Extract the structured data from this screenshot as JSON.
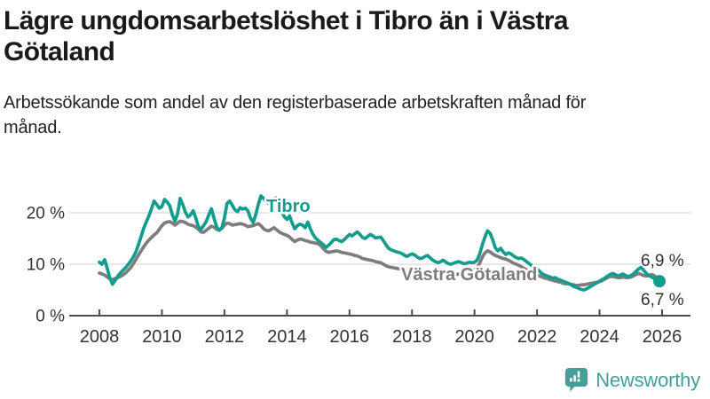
{
  "header": {
    "title": "Lägre ungdomsarbetslöshet i Tibro än i Västra Götaland",
    "subtitle": "Arbetssökande som andel av den registerbaserade arbetskraften månad för månad."
  },
  "footer": {
    "brand": "Newsworthy",
    "logo_icon": "speech-bubble-bar-chart-icon"
  },
  "colors": {
    "tibro_line": "#149c8c",
    "vastra_gotaland_line": "#7d7d7d",
    "axis": "#4d4d4d",
    "grid": "#dadada",
    "title_text": "#1a1a1a",
    "tick_text": "#333333",
    "brand_teal": "#43a098"
  },
  "chart_data": {
    "type": "line",
    "title": "Lägre ungdomsarbetslöshet i Tibro än i Västra Götaland",
    "subtitle": "Arbetssökande som andel av den registerbaserade arbetskraften månad för månad.",
    "unit": "%",
    "frequency": "monthly",
    "x_start": "2008-01",
    "x_end": "2025-12",
    "grid": "horizontal-only",
    "legend_position": "inline-labels",
    "ylim": [
      0,
      25
    ],
    "y_ticks": [
      {
        "label": "0 %",
        "value": 0
      },
      {
        "label": "10 %",
        "value": 10
      },
      {
        "label": "20 %",
        "value": 20
      }
    ],
    "x_ticks": [
      {
        "label": "2008",
        "year": 2008
      },
      {
        "label": "2010",
        "year": 2010
      },
      {
        "label": "2012",
        "year": 2012
      },
      {
        "label": "2014",
        "year": 2014
      },
      {
        "label": "2016",
        "year": 2016
      },
      {
        "label": "2018",
        "year": 2018
      },
      {
        "label": "2020",
        "year": 2020
      },
      {
        "label": "2022",
        "year": 2022
      },
      {
        "label": "2024",
        "year": 2024
      },
      {
        "label": "2026",
        "year": 2026
      }
    ],
    "series": [
      {
        "name": "Tibro",
        "color": "#149c8c",
        "end_value": 6.7,
        "end_label": "6,7 %",
        "values": [
          10.4,
          10.0,
          10.9,
          9.2,
          7.4,
          6.1,
          6.8,
          7.6,
          8.3,
          8.8,
          9.3,
          9.9,
          10.6,
          11.4,
          12.4,
          13.8,
          15.4,
          17.0,
          18.2,
          19.4,
          20.8,
          22.3,
          21.6,
          20.9,
          21.2,
          22.6,
          22.1,
          21.4,
          19.6,
          18.4,
          19.8,
          22.8,
          21.6,
          20.1,
          19.2,
          19.6,
          20.4,
          19.0,
          17.3,
          16.8,
          17.5,
          18.3,
          19.6,
          20.8,
          19.0,
          17.3,
          16.6,
          17.1,
          19.0,
          21.8,
          22.3,
          21.5,
          20.6,
          20.2,
          21.0,
          20.7,
          20.9,
          20.4,
          19.0,
          18.1,
          19.6,
          21.6,
          23.3,
          22.8,
          22.2,
          21.8,
          22.1,
          22.6,
          22.9,
          21.4,
          20.2,
          19.2,
          18.7,
          19.4,
          18.0,
          16.9,
          17.5,
          17.8,
          17.6,
          17.1,
          18.2,
          16.9,
          15.8,
          15.1,
          14.6,
          14.2,
          13.8,
          13.3,
          13.7,
          14.2,
          14.8,
          14.9,
          14.6,
          14.4,
          14.8,
          15.3,
          15.8,
          15.5,
          15.9,
          16.3,
          15.8,
          15.2,
          15.0,
          15.4,
          15.8,
          15.5,
          15.1,
          15.2,
          15.3,
          14.6,
          13.8,
          13.1,
          12.8,
          12.6,
          12.4,
          12.3,
          12.1,
          11.8,
          11.5,
          11.8,
          12.0,
          11.8,
          11.4,
          11.1,
          11.2,
          11.5,
          11.7,
          11.2,
          10.8,
          10.5,
          10.3,
          10.5,
          10.8,
          10.4,
          10.1,
          10.0,
          10.2,
          10.4,
          10.5,
          10.3,
          10.1,
          10.2,
          10.4,
          10.3,
          10.4,
          10.8,
          12.0,
          13.8,
          15.3,
          16.5,
          16.0,
          14.7,
          13.2,
          12.6,
          13.1,
          12.4,
          11.9,
          12.2,
          12.0,
          11.6,
          11.3,
          11.1,
          11.2,
          10.9,
          10.5,
          10.1,
          9.7,
          9.4,
          9.1,
          8.6,
          8.1,
          7.9,
          7.7,
          7.5,
          7.3,
          7.4,
          7.1,
          6.9,
          6.7,
          6.5,
          6.3,
          6.0,
          5.7,
          5.5,
          5.3,
          5.1,
          5.0,
          5.2,
          5.5,
          5.8,
          6.1,
          6.4,
          6.7,
          7.0,
          7.3,
          7.7,
          8.0,
          8.2,
          8.0,
          7.7,
          7.9,
          8.1,
          7.8,
          7.6,
          7.8,
          8.1,
          8.6,
          9.1,
          9.4,
          8.8,
          8.2,
          7.8,
          7.5,
          7.2,
          7.0,
          6.7
        ]
      },
      {
        "name": "Västra Götaland",
        "color": "#7d7d7d",
        "end_value": 6.9,
        "end_label": "6,9 %",
        "values": [
          8.3,
          8.1,
          7.9,
          7.5,
          7.2,
          7.0,
          7.2,
          7.4,
          7.6,
          7.9,
          8.3,
          8.8,
          9.3,
          10.1,
          10.9,
          11.8,
          12.6,
          13.4,
          14.1,
          14.7,
          15.2,
          15.7,
          16.1,
          16.8,
          17.5,
          18.0,
          18.2,
          18.3,
          18.0,
          17.6,
          18.0,
          18.4,
          18.3,
          18.1,
          17.8,
          17.6,
          17.5,
          17.2,
          16.8,
          16.3,
          16.2,
          16.6,
          17.0,
          17.4,
          17.2,
          16.8,
          16.6,
          17.0,
          17.6,
          18.0,
          17.9,
          17.6,
          17.7,
          17.8,
          17.9,
          17.8,
          17.6,
          17.3,
          17.4,
          17.5,
          17.7,
          17.9,
          17.5,
          16.9,
          16.6,
          16.5,
          16.8,
          17.1,
          16.7,
          16.3,
          16.0,
          15.8,
          15.6,
          15.3,
          14.8,
          14.4,
          14.7,
          14.9,
          14.8,
          14.6,
          14.5,
          14.3,
          14.2,
          14.1,
          14.0,
          13.6,
          13.0,
          12.5,
          12.3,
          12.4,
          12.5,
          12.6,
          12.5,
          12.3,
          12.2,
          12.1,
          12.0,
          11.9,
          11.7,
          11.6,
          11.4,
          11.1,
          11.0,
          10.9,
          10.8,
          10.7,
          10.5,
          10.4,
          10.3,
          10.0,
          9.7,
          9.5,
          9.4,
          9.3,
          9.2,
          9.1,
          9.0,
          8.8,
          8.7,
          8.6,
          8.5,
          8.2,
          8.0,
          7.9,
          7.8,
          7.8,
          7.7,
          7.6,
          7.5,
          7.5,
          7.5,
          7.5,
          7.6,
          7.7,
          7.7,
          7.8,
          7.9,
          8.0,
          8.1,
          8.2,
          8.4,
          8.6,
          8.8,
          8.9,
          9.0,
          9.4,
          10.2,
          11.4,
          12.2,
          12.6,
          12.4,
          12.0,
          11.7,
          11.5,
          11.3,
          11.1,
          11.0,
          10.8,
          10.5,
          10.2,
          10.0,
          9.8,
          9.5,
          9.2,
          8.9,
          8.6,
          8.3,
          8.1,
          7.9,
          7.7,
          7.5,
          7.3,
          7.2,
          7.0,
          6.9,
          6.7,
          6.6,
          6.5,
          6.3,
          6.2,
          6.2,
          6.1,
          6.0,
          5.9,
          5.9,
          6.0,
          6.0,
          6.1,
          6.2,
          6.3,
          6.4,
          6.5,
          6.6,
          6.8,
          7.1,
          7.4,
          7.6,
          7.6,
          7.5,
          7.4,
          7.4,
          7.5,
          7.4,
          7.4,
          7.5,
          7.7,
          8.0,
          8.2,
          8.0,
          7.8,
          7.7,
          7.8,
          8.0,
          7.8,
          7.3,
          6.9
        ]
      }
    ]
  }
}
